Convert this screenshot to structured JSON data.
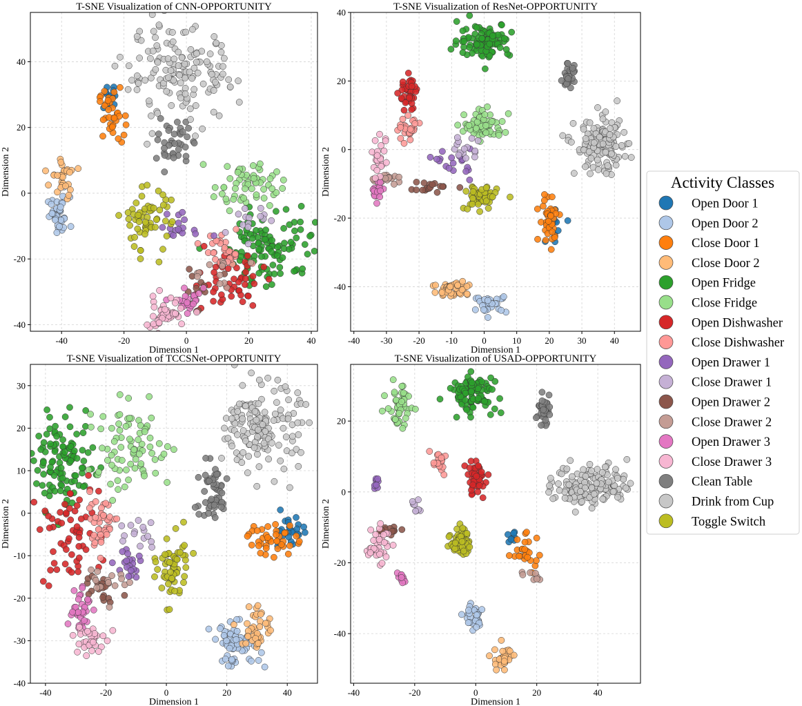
{
  "legend": {
    "title": "Activity Classes",
    "classes": [
      {
        "name": "Open Door 1",
        "color": "#1f77b4"
      },
      {
        "name": "Open Door 2",
        "color": "#aec7e8"
      },
      {
        "name": "Close Door 1",
        "color": "#ff7f0e"
      },
      {
        "name": "Close Door 2",
        "color": "#ffbb78"
      },
      {
        "name": "Open Fridge",
        "color": "#2ca02c"
      },
      {
        "name": "Close Fridge",
        "color": "#98df8a"
      },
      {
        "name": "Open Dishwasher",
        "color": "#d62728"
      },
      {
        "name": "Close Dishwasher",
        "color": "#ff9896"
      },
      {
        "name": "Open Drawer 1",
        "color": "#9467bd"
      },
      {
        "name": "Close Drawer 1",
        "color": "#c5b0d5"
      },
      {
        "name": "Open Drawer 2",
        "color": "#8c564b"
      },
      {
        "name": "Close Drawer 2",
        "color": "#c49c94"
      },
      {
        "name": "Open Drawer 3",
        "color": "#e377c2"
      },
      {
        "name": "Close Drawer 3",
        "color": "#f7b6d2"
      },
      {
        "name": "Clean Table",
        "color": "#7f7f7f"
      },
      {
        "name": "Drink from Cup",
        "color": "#c7c7c7"
      },
      {
        "name": "Toggle Switch",
        "color": "#bcbd22"
      }
    ]
  },
  "chart_data": [
    {
      "type": "scatter",
      "title": "T-SNE Visualization of CNN-OPPORTUNITY",
      "xlabel": "Dimension 1",
      "ylabel": "Dimension 2",
      "xlim": [
        -50,
        42
      ],
      "ylim": [
        -42,
        55
      ],
      "xticks": [
        -40,
        -20,
        0,
        20,
        40
      ],
      "yticks": [
        -40,
        -20,
        0,
        20,
        40
      ],
      "grid": true,
      "clusters": [
        {
          "cls": 0,
          "x": -24,
          "y": 29,
          "sx": 2,
          "sy": 2,
          "n": 14
        },
        {
          "cls": 1,
          "x": -41,
          "y": -7,
          "sx": 1.8,
          "sy": 3,
          "n": 35
        },
        {
          "cls": 2,
          "x": -24,
          "y": 24,
          "sx": 2,
          "sy": 4,
          "n": 35
        },
        {
          "cls": 3,
          "x": -40,
          "y": 4,
          "sx": 2,
          "sy": 3,
          "n": 30
        },
        {
          "cls": 4,
          "x": 27,
          "y": -16,
          "sx": 7,
          "sy": 6,
          "n": 110
        },
        {
          "cls": 5,
          "x": 19,
          "y": 3,
          "sx": 5,
          "sy": 3.5,
          "n": 60
        },
        {
          "cls": 6,
          "x": 13,
          "y": -27,
          "sx": 6,
          "sy": 4,
          "n": 50
        },
        {
          "cls": 7,
          "x": 12,
          "y": -18,
          "sx": 3.5,
          "sy": 3,
          "n": 30
        },
        {
          "cls": 8,
          "x": -2,
          "y": -10,
          "sx": 4,
          "sy": 2.5,
          "n": 18
        },
        {
          "cls": 9,
          "x": 20,
          "y": -8,
          "sx": 3,
          "sy": 3,
          "n": 14
        },
        {
          "cls": 10,
          "x": 3,
          "y": -28,
          "sx": 4,
          "sy": 3,
          "n": 12
        },
        {
          "cls": 11,
          "x": 9,
          "y": -24,
          "sx": 4,
          "sy": 3,
          "n": 12
        },
        {
          "cls": 12,
          "x": 0,
          "y": -33,
          "sx": 3,
          "sy": 2.5,
          "n": 22
        },
        {
          "cls": 13,
          "x": -7,
          "y": -37,
          "sx": 4,
          "sy": 2.5,
          "n": 45
        },
        {
          "cls": 14,
          "x": -4,
          "y": 15,
          "sx": 2.5,
          "sy": 3.5,
          "n": 40
        },
        {
          "cls": 15,
          "x": -2,
          "y": 36,
          "sx": 9,
          "sy": 7,
          "n": 150
        },
        {
          "cls": 16,
          "x": -13,
          "y": -8,
          "sx": 4,
          "sy": 5,
          "n": 60
        }
      ]
    },
    {
      "type": "scatter",
      "title": "T-SNE Visualization of ResNet-OPPORTUNITY",
      "xlabel": "Dimension 1",
      "ylabel": "Dimension 2",
      "xlim": [
        -41,
        48
      ],
      "ylim": [
        -53,
        40
      ],
      "xticks": [
        -40,
        -30,
        -20,
        -10,
        0,
        10,
        20,
        30,
        40
      ],
      "yticks": [
        -40,
        -20,
        0,
        20,
        40
      ],
      "grid": true,
      "clusters": [
        {
          "cls": 0,
          "x": 22,
          "y": -22,
          "sx": 2,
          "sy": 2,
          "n": 10
        },
        {
          "cls": 1,
          "x": 2,
          "y": -45,
          "sx": 2.5,
          "sy": 1.2,
          "n": 30
        },
        {
          "cls": 2,
          "x": 20,
          "y": -20,
          "sx": 1.5,
          "sy": 3.5,
          "n": 40
        },
        {
          "cls": 3,
          "x": -9,
          "y": -41,
          "sx": 3.5,
          "sy": 1.5,
          "n": 45
        },
        {
          "cls": 4,
          "x": 0,
          "y": 32,
          "sx": 4,
          "sy": 2.5,
          "n": 100
        },
        {
          "cls": 5,
          "x": 0,
          "y": 7,
          "sx": 3,
          "sy": 2,
          "n": 70
        },
        {
          "cls": 6,
          "x": -23,
          "y": 16,
          "sx": 1.5,
          "sy": 3,
          "n": 40
        },
        {
          "cls": 7,
          "x": -23,
          "y": 6,
          "sx": 2,
          "sy": 1.5,
          "n": 25
        },
        {
          "cls": 8,
          "x": -9,
          "y": -4,
          "sx": 2.5,
          "sy": 2,
          "n": 18
        },
        {
          "cls": 9,
          "x": -6,
          "y": 1,
          "sx": 2.5,
          "sy": 2,
          "n": 15
        },
        {
          "cls": 10,
          "x": -17,
          "y": -11,
          "sx": 3.5,
          "sy": 0.8,
          "n": 18
        },
        {
          "cls": 11,
          "x": -30,
          "y": -8.5,
          "sx": 2.5,
          "sy": 0.8,
          "n": 18
        },
        {
          "cls": 12,
          "x": -33,
          "y": -12,
          "sx": 1,
          "sy": 1.5,
          "n": 18
        },
        {
          "cls": 13,
          "x": -32,
          "y": -3,
          "sx": 1.3,
          "sy": 3,
          "n": 22
        },
        {
          "cls": 14,
          "x": 26,
          "y": 21,
          "sx": 1,
          "sy": 2,
          "n": 25
        },
        {
          "cls": 15,
          "x": 36,
          "y": 1,
          "sx": 4,
          "sy": 4,
          "n": 140
        },
        {
          "cls": 16,
          "x": -1,
          "y": -14,
          "sx": 2.5,
          "sy": 1.8,
          "n": 55
        }
      ]
    },
    {
      "type": "scatter",
      "title": "T-SNE Visualization of TCCSNet-OPPORTUNITY",
      "xlabel": "Dimension 1",
      "ylabel": "Dimension 2",
      "xlim": [
        -45,
        50
      ],
      "ylim": [
        -40,
        35
      ],
      "xticks": [
        -40,
        -20,
        0,
        20,
        40
      ],
      "yticks": [
        -40,
        -30,
        -20,
        -10,
        0,
        10,
        20,
        30
      ],
      "grid": true,
      "clusters": [
        {
          "cls": 0,
          "x": 40,
          "y": -4,
          "sx": 3,
          "sy": 2,
          "n": 25
        },
        {
          "cls": 1,
          "x": 23,
          "y": -31,
          "sx": 4,
          "sy": 2.5,
          "n": 60
        },
        {
          "cls": 2,
          "x": 35,
          "y": -6,
          "sx": 4,
          "sy": 2,
          "n": 40
        },
        {
          "cls": 3,
          "x": 30,
          "y": -27,
          "sx": 2.5,
          "sy": 3,
          "n": 40
        },
        {
          "cls": 4,
          "x": -34,
          "y": 12,
          "sx": 5,
          "sy": 5,
          "n": 110
        },
        {
          "cls": 5,
          "x": -12,
          "y": 15,
          "sx": 7,
          "sy": 5,
          "n": 80
        },
        {
          "cls": 6,
          "x": -32,
          "y": -5,
          "sx": 5,
          "sy": 6,
          "n": 60
        },
        {
          "cls": 7,
          "x": -22,
          "y": -2,
          "sx": 3,
          "sy": 3,
          "n": 40
        },
        {
          "cls": 8,
          "x": -12,
          "y": -12,
          "sx": 2.5,
          "sy": 2,
          "n": 20
        },
        {
          "cls": 9,
          "x": -8,
          "y": -4,
          "sx": 2.5,
          "sy": 2,
          "n": 15
        },
        {
          "cls": 10,
          "x": -22,
          "y": -17,
          "sx": 3,
          "sy": 2,
          "n": 20
        },
        {
          "cls": 11,
          "x": -20,
          "y": -16,
          "sx": 3,
          "sy": 3,
          "n": 15
        },
        {
          "cls": 12,
          "x": -29,
          "y": -22,
          "sx": 2,
          "sy": 3,
          "n": 35
        },
        {
          "cls": 13,
          "x": -26,
          "y": -30,
          "sx": 2.5,
          "sy": 2,
          "n": 35
        },
        {
          "cls": 14,
          "x": 15,
          "y": 5,
          "sx": 3,
          "sy": 3.5,
          "n": 50
        },
        {
          "cls": 15,
          "x": 32,
          "y": 20,
          "sx": 6,
          "sy": 5,
          "n": 160
        },
        {
          "cls": 16,
          "x": 2,
          "y": -13,
          "sx": 2.5,
          "sy": 4,
          "n": 60
        }
      ]
    },
    {
      "type": "scatter",
      "title": "T-SNE Visualization of USAD-OPPORTUNITY",
      "xlabel": "Dimension 1",
      "ylabel": "Dimension 2",
      "xlim": [
        -41,
        54
      ],
      "ylim": [
        -54,
        36
      ],
      "xticks": [
        -40,
        -20,
        0,
        20,
        40
      ],
      "yticks": [
        -40,
        -20,
        0,
        20
      ],
      "grid": true,
      "clusters": [
        {
          "cls": 0,
          "x": 12,
          "y": -13,
          "sx": 1,
          "sy": 1.5,
          "n": 8
        },
        {
          "cls": 1,
          "x": -1,
          "y": -35,
          "sx": 1.5,
          "sy": 2,
          "n": 30
        },
        {
          "cls": 2,
          "x": 16,
          "y": -17,
          "sx": 3,
          "sy": 2.5,
          "n": 25
        },
        {
          "cls": 3,
          "x": 9,
          "y": -47,
          "sx": 1.5,
          "sy": 2,
          "n": 30
        },
        {
          "cls": 4,
          "x": -1,
          "y": 28,
          "sx": 4,
          "sy": 2.5,
          "n": 100
        },
        {
          "cls": 5,
          "x": -25,
          "y": 24,
          "sx": 2,
          "sy": 3,
          "n": 50
        },
        {
          "cls": 6,
          "x": 0,
          "y": 4,
          "sx": 1.5,
          "sy": 2.5,
          "n": 45
        },
        {
          "cls": 7,
          "x": -12,
          "y": 8,
          "sx": 1.5,
          "sy": 1.5,
          "n": 20
        },
        {
          "cls": 8,
          "x": -33,
          "y": 2,
          "sx": 0.8,
          "sy": 1,
          "n": 8
        },
        {
          "cls": 9,
          "x": -20,
          "y": -4,
          "sx": 1,
          "sy": 1,
          "n": 8
        },
        {
          "cls": 10,
          "x": -28,
          "y": -11,
          "sx": 2,
          "sy": 0.6,
          "n": 12
        },
        {
          "cls": 11,
          "x": 18,
          "y": -24,
          "sx": 1.5,
          "sy": 1,
          "n": 8
        },
        {
          "cls": 12,
          "x": -24,
          "y": -24,
          "sx": 0.7,
          "sy": 1,
          "n": 12
        },
        {
          "cls": 13,
          "x": -32,
          "y": -15,
          "sx": 2,
          "sy": 2.5,
          "n": 35
        },
        {
          "cls": 14,
          "x": 22,
          "y": 23,
          "sx": 1,
          "sy": 2,
          "n": 35
        },
        {
          "cls": 15,
          "x": 38,
          "y": 2,
          "sx": 6,
          "sy": 3,
          "n": 150
        },
        {
          "cls": 16,
          "x": -5,
          "y": -14,
          "sx": 1.5,
          "sy": 2,
          "n": 55
        }
      ]
    }
  ]
}
